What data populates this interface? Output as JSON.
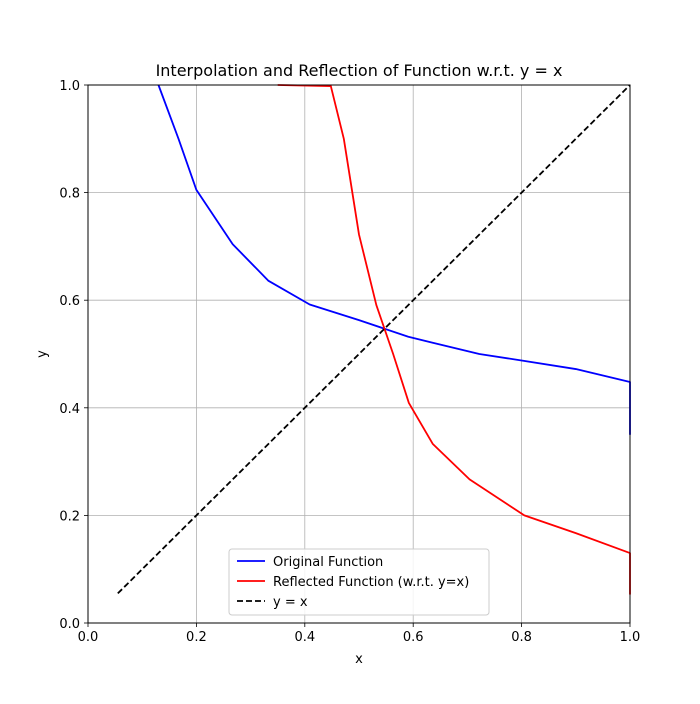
{
  "chart_data": {
    "type": "line",
    "title": "Interpolation and Reflection of Function w.r.t. y = x",
    "xlabel": "x",
    "ylabel": "y",
    "xlim": [
      0.0,
      1.0
    ],
    "ylim": [
      0.0,
      1.0
    ],
    "xticks": [
      "0.0",
      "0.2",
      "0.4",
      "0.6",
      "0.8",
      "1.0"
    ],
    "yticks": [
      "0.0",
      "0.2",
      "0.4",
      "0.6",
      "0.8",
      "1.0"
    ],
    "grid": true,
    "legend_placement": "lower-center",
    "series": [
      {
        "name": "Original Function",
        "color": "#0000ff",
        "style": "solid",
        "points": [
          [
            0.13,
            1.0
          ],
          [
            0.167,
            0.9
          ],
          [
            0.2,
            0.805
          ],
          [
            0.267,
            0.704
          ],
          [
            0.333,
            0.636
          ],
          [
            0.409,
            0.592
          ],
          [
            0.5,
            0.563
          ],
          [
            0.591,
            0.532
          ],
          [
            0.636,
            0.521
          ],
          [
            0.722,
            0.5
          ],
          [
            0.8,
            0.488
          ],
          [
            0.9,
            0.472
          ],
          [
            1.0,
            0.448
          ],
          [
            1.0,
            0.35
          ]
        ]
      },
      {
        "name": "Reflected Function (w.r.t. y=x)",
        "color": "#ff0000",
        "style": "solid",
        "points": [
          [
            0.35,
            1.0
          ],
          [
            0.448,
            0.998
          ],
          [
            0.472,
            0.9
          ],
          [
            0.5,
            0.722
          ],
          [
            0.532,
            0.591
          ],
          [
            0.563,
            0.5
          ],
          [
            0.592,
            0.409
          ],
          [
            0.636,
            0.333
          ],
          [
            0.704,
            0.267
          ],
          [
            0.805,
            0.2
          ],
          [
            0.9,
            0.167
          ],
          [
            1.0,
            0.13
          ],
          [
            1.0,
            0.053
          ]
        ]
      },
      {
        "name": "y = x",
        "color": "#000000",
        "style": "dashed",
        "points": [
          [
            0.055,
            0.055
          ],
          [
            1.0,
            1.0
          ]
        ]
      }
    ]
  }
}
